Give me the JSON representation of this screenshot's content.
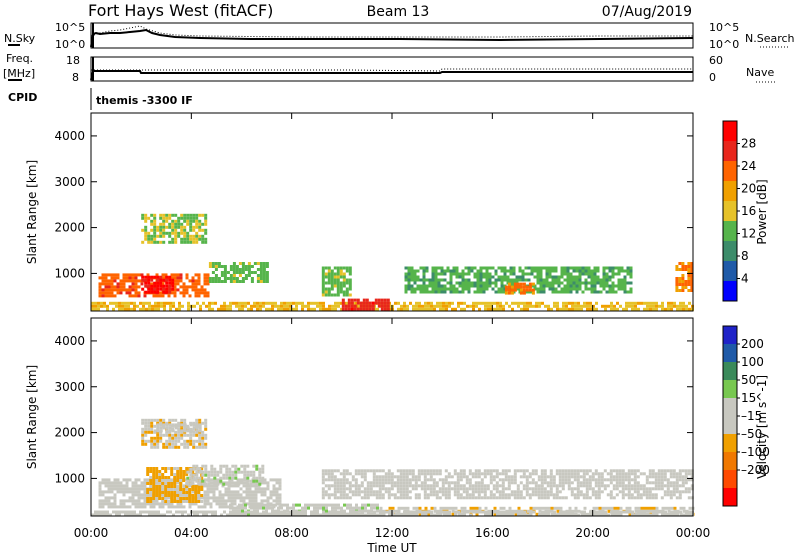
{
  "header": {
    "station": "Fort Hays West (fitACF)",
    "beam": "Beam 13",
    "date": "07/Aug/2019"
  },
  "summary_panels": {
    "nsky": {
      "label": "N.Sky",
      "ticks": [
        "10^5",
        "10^0"
      ]
    },
    "nsearch": {
      "label": "N.Search",
      "ticks": [
        "10^5",
        "10^0"
      ]
    },
    "freq": {
      "label": "Freq.",
      "unit": "[MHz]",
      "ticks": [
        "18",
        "8"
      ]
    },
    "nave": {
      "label": "Nave",
      "ticks": [
        "60",
        "0"
      ]
    },
    "cpid": {
      "label": "CPID",
      "value": "themis -3300 IF"
    }
  },
  "colors": {
    "power_scale": [
      "#0000ff",
      "#1f5aa8",
      "#3c8c6a",
      "#56b44b",
      "#e6c229",
      "#f0a000",
      "#ff6400",
      "#e8261c",
      "#ff0000"
    ],
    "velocity_scale": [
      "#1f23c8",
      "#1f5aa8",
      "#3a8a5a",
      "#78c850",
      "#c8c8c0",
      "#c8c8c0",
      "#f0a000",
      "#f07800",
      "#ff4a00",
      "#ff0000"
    ],
    "background": "#ffffff"
  },
  "chart_data": [
    {
      "type": "heatmap",
      "title": "",
      "xlabel": "Time UT",
      "ylabel": "Slant Range [km]",
      "x_ticks": [
        "00:00",
        "04:00",
        "08:00",
        "12:00",
        "16:00",
        "20:00",
        "00:00"
      ],
      "y_ticks": [
        1000,
        2000,
        3000,
        4000
      ],
      "xlim_hours": [
        0,
        24
      ],
      "ylim_km": [
        180,
        4500
      ],
      "colorbar": {
        "label": "Power [dB]",
        "ticks": [
          "4",
          "8",
          "12",
          "16",
          "20",
          "24",
          "28"
        ],
        "range": [
          0,
          30
        ]
      },
      "regions": [
        {
          "t": [
            0.3,
            4.7
          ],
          "r": [
            500,
            1000
          ],
          "value": 22
        },
        {
          "t": [
            2.0,
            3.3
          ],
          "r": [
            600,
            950
          ],
          "value": 28
        },
        {
          "t": [
            4.7,
            7.0
          ],
          "r": [
            850,
            1250
          ],
          "value": 12
        },
        {
          "t": [
            2.0,
            4.6
          ],
          "r": [
            1700,
            2300
          ],
          "value": 13
        },
        {
          "t": [
            0.0,
            24.0
          ],
          "r": [
            200,
            380
          ],
          "value": 16
        },
        {
          "t": [
            9.2,
            10.3
          ],
          "r": [
            500,
            1150
          ],
          "value": 12
        },
        {
          "t": [
            10.0,
            11.8
          ],
          "r": [
            200,
            450
          ],
          "value": 25
        },
        {
          "t": [
            12.5,
            21.5
          ],
          "r": [
            600,
            1150
          ],
          "value": 11
        },
        {
          "t": [
            16.5,
            17.6
          ],
          "r": [
            550,
            800
          ],
          "value": 21
        },
        {
          "t": [
            23.3,
            24.0
          ],
          "r": [
            600,
            1250
          ],
          "value": 20
        }
      ]
    },
    {
      "type": "heatmap",
      "title": "",
      "xlabel": "Time UT",
      "ylabel": "Slant Range [km]",
      "x_ticks": [
        "00:00",
        "04:00",
        "08:00",
        "12:00",
        "16:00",
        "20:00",
        "00:00"
      ],
      "y_ticks": [
        1000,
        2000,
        3000,
        4000
      ],
      "xlim_hours": [
        0,
        24
      ],
      "ylim_km": [
        180,
        4500
      ],
      "colorbar": {
        "label": "Velocity [m s^-1]",
        "ticks": [
          "200",
          "100",
          "50",
          "15",
          "-15",
          "-50",
          "-100",
          "-200"
        ],
        "range": [
          -250,
          250
        ]
      },
      "regions": [
        {
          "t": [
            0.3,
            7.5
          ],
          "r": [
            350,
            1000
          ],
          "value": 0
        },
        {
          "t": [
            2.2,
            4.4
          ],
          "r": [
            500,
            1250
          ],
          "value": -70
        },
        {
          "t": [
            3.8,
            6.8
          ],
          "r": [
            850,
            1300
          ],
          "value": 30
        },
        {
          "t": [
            2.0,
            4.6
          ],
          "r": [
            1700,
            2300
          ],
          "value": -40
        },
        {
          "t": [
            2.5,
            4.3
          ],
          "r": [
            2050,
            2200
          ],
          "value": 0
        },
        {
          "t": [
            5.5,
            11.5
          ],
          "r": [
            200,
            450
          ],
          "value": 30
        },
        {
          "t": [
            11.5,
            24.0
          ],
          "r": [
            200,
            380
          ],
          "value": -35
        },
        {
          "t": [
            9.2,
            24.0
          ],
          "r": [
            550,
            1200
          ],
          "value": 0
        },
        {
          "t": [
            0.0,
            24.0
          ],
          "r": [
            200,
            300
          ],
          "value": 0
        }
      ]
    }
  ]
}
